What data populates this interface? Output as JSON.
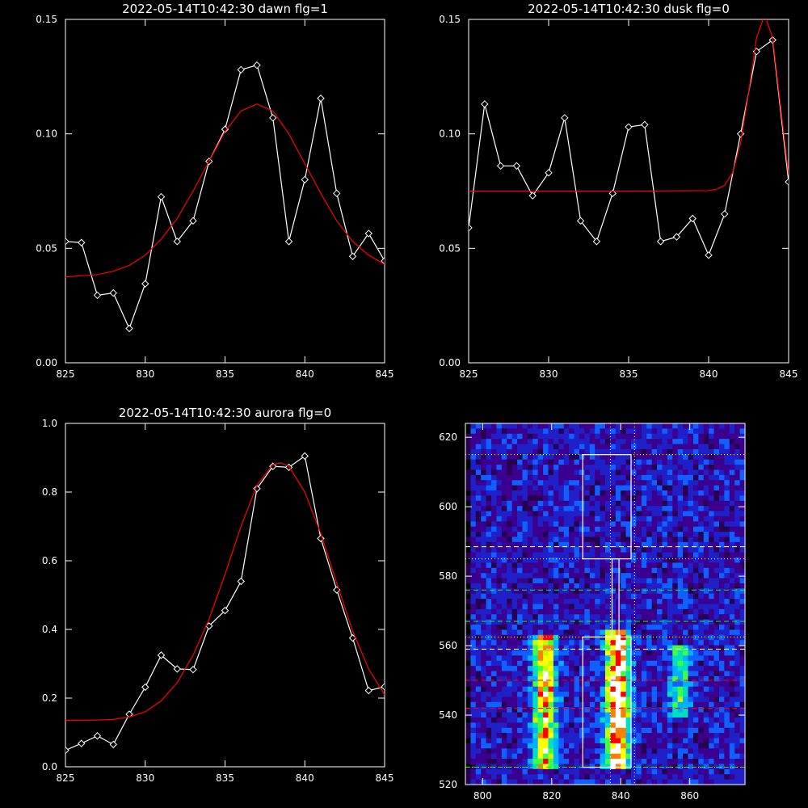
{
  "chart_data": [
    {
      "type": "line",
      "title": "2022-05-14T10:42:30 dawn flg=1",
      "xlim": [
        825,
        845
      ],
      "ylim": [
        0,
        0.15
      ],
      "xticks": [
        825,
        830,
        835,
        840,
        845
      ],
      "yticks": [
        0,
        0.05,
        0.1,
        0.15
      ],
      "xtick_labels": [
        "825",
        "830",
        "835",
        "840",
        "845"
      ],
      "ytick_labels": [
        "0.00",
        "0.05",
        "0.10",
        "0.15"
      ],
      "series": [
        {
          "kind": "data",
          "color": "#ffffff",
          "x": [
            825,
            826,
            827,
            828,
            829,
            830,
            831,
            832,
            833,
            834,
            835,
            836,
            837,
            838,
            839,
            840,
            841,
            842,
            843,
            844,
            845
          ],
          "y": [
            0.053,
            0.0525,
            0.0295,
            0.0305,
            0.015,
            0.0345,
            0.0725,
            0.053,
            0.062,
            0.088,
            0.102,
            0.128,
            0.13,
            0.107,
            0.053,
            0.08,
            0.1155,
            0.074,
            0.0465,
            0.0565,
            0.0445
          ]
        },
        {
          "kind": "fit",
          "color": "#ff0000",
          "x": [
            825,
            826,
            827,
            828,
            829,
            830,
            831,
            832,
            833,
            834,
            835,
            836,
            837,
            838,
            839,
            840,
            841,
            842,
            843,
            844,
            845
          ],
          "y": [
            0.0375,
            0.038,
            0.0385,
            0.04,
            0.0425,
            0.047,
            0.054,
            0.063,
            0.075,
            0.088,
            0.101,
            0.11,
            0.113,
            0.11,
            0.1,
            0.087,
            0.074,
            0.062,
            0.053,
            0.047,
            0.043
          ]
        }
      ]
    },
    {
      "type": "line",
      "title": "2022-05-14T10:42:30 dusk flg=0",
      "xlim": [
        825,
        845
      ],
      "ylim": [
        0,
        0.15
      ],
      "xticks": [
        825,
        830,
        835,
        840,
        845
      ],
      "yticks": [
        0,
        0.05,
        0.1,
        0.15
      ],
      "xtick_labels": [
        "825",
        "830",
        "835",
        "840",
        "845"
      ],
      "ytick_labels": [
        "0.00",
        "0.05",
        "0.10",
        "0.15"
      ],
      "series": [
        {
          "kind": "data",
          "color": "#ffffff",
          "x": [
            825,
            826,
            827,
            828,
            829,
            830,
            831,
            832,
            833,
            834,
            835,
            836,
            837,
            838,
            839,
            840,
            841,
            842,
            843,
            844,
            845
          ],
          "y": [
            0.059,
            0.113,
            0.086,
            0.086,
            0.073,
            0.083,
            0.107,
            0.062,
            0.053,
            0.074,
            0.103,
            0.104,
            0.053,
            0.055,
            0.063,
            0.047,
            0.065,
            0.1,
            0.136,
            0.141,
            0.079
          ]
        },
        {
          "kind": "fit",
          "color": "#ff0000",
          "x": [
            825,
            830,
            835,
            840,
            840.5,
            841,
            841.5,
            842,
            842.5,
            843,
            843.5,
            844,
            844.5,
            845
          ],
          "y": [
            0.075,
            0.075,
            0.075,
            0.0752,
            0.0758,
            0.0775,
            0.083,
            0.096,
            0.118,
            0.142,
            0.152,
            0.142,
            0.112,
            0.082
          ]
        }
      ]
    },
    {
      "type": "line",
      "title": "2022-05-14T10:42:30 aurora flg=0",
      "xlim": [
        825,
        845
      ],
      "ylim": [
        0,
        1.0
      ],
      "xticks": [
        825,
        830,
        835,
        840,
        845
      ],
      "yticks": [
        0,
        0.2,
        0.4,
        0.6,
        0.8,
        1.0
      ],
      "xtick_labels": [
        "825",
        "830",
        "835",
        "840",
        "845"
      ],
      "ytick_labels": [
        "0.0",
        "0.2",
        "0.4",
        "0.6",
        "0.8",
        "1.0"
      ],
      "series": [
        {
          "kind": "data",
          "color": "#ffffff",
          "x": [
            825,
            826,
            827,
            828,
            829,
            830,
            831,
            832,
            833,
            834,
            835,
            836,
            837,
            838,
            839,
            840,
            841,
            842,
            843,
            844,
            845
          ],
          "y": [
            0.048,
            0.068,
            0.09,
            0.065,
            0.153,
            0.232,
            0.325,
            0.285,
            0.283,
            0.41,
            0.455,
            0.54,
            0.81,
            0.875,
            0.872,
            0.905,
            0.665,
            0.515,
            0.375,
            0.222,
            0.233
          ]
        },
        {
          "kind": "fit",
          "color": "#ff0000",
          "x": [
            825,
            826,
            827,
            828,
            829,
            830,
            831,
            832,
            833,
            834,
            835,
            836,
            837,
            838,
            838.5,
            839,
            840,
            841,
            842,
            843,
            844,
            845
          ],
          "y": [
            0.135,
            0.135,
            0.136,
            0.138,
            0.145,
            0.16,
            0.192,
            0.245,
            0.325,
            0.43,
            0.56,
            0.7,
            0.82,
            0.88,
            0.885,
            0.875,
            0.8,
            0.68,
            0.535,
            0.395,
            0.285,
            0.21
          ]
        }
      ]
    },
    {
      "type": "heatmap",
      "title": "",
      "xlim": [
        795,
        876
      ],
      "ylim": [
        520,
        624
      ],
      "xticks": [
        800,
        820,
        840,
        860
      ],
      "yticks": [
        520,
        540,
        560,
        580,
        600,
        620
      ],
      "xtick_labels": [
        "800",
        "820",
        "840",
        "860"
      ],
      "ytick_labels": [
        "520",
        "540",
        "560",
        "580",
        "600",
        "620"
      ],
      "grid": {
        "nx": 54,
        "ny": 70
      },
      "colormap": [
        "#000000",
        "#280050",
        "#3c0090",
        "#2020c8",
        "#1060ff",
        "#00b0ff",
        "#00e0c0",
        "#40ff40",
        "#c0ff00",
        "#ffff00",
        "#ff8000",
        "#ff0000",
        "#ffffff"
      ],
      "bands": [
        {
          "x_center": 818,
          "y_range": [
            525,
            563
          ],
          "peak": 0.72
        },
        {
          "x_center": 839,
          "y_range": [
            525,
            564
          ],
          "peak": 1.0
        },
        {
          "x_center": 857,
          "y_range": [
            540,
            560
          ],
          "peak": 0.35
        }
      ],
      "boxes": [
        {
          "x": [
            829,
            843
          ],
          "y": [
            585,
            615
          ]
        },
        {
          "x": [
            829,
            843
          ],
          "y": [
            525,
            562.5
          ]
        },
        {
          "x": [
            837.5,
            839.5
          ],
          "y": [
            562.5,
            585
          ]
        }
      ],
      "dotted_vlines": [
        837,
        844
      ],
      "dotted_hlines": [
        615,
        585,
        562.5,
        525
      ],
      "dashed_hlines": [
        {
          "y": 588.5,
          "color": "#ffffff"
        },
        {
          "y": 559,
          "color": "#ffffff"
        },
        {
          "y": 576,
          "color": "#00ff00"
        },
        {
          "y": 567,
          "color": "#00ff00"
        },
        {
          "y": 525,
          "color": "#00ff00"
        },
        {
          "y": 550,
          "color": "#ff0000"
        },
        {
          "y": 542,
          "color": "#ff0000"
        }
      ]
    }
  ]
}
